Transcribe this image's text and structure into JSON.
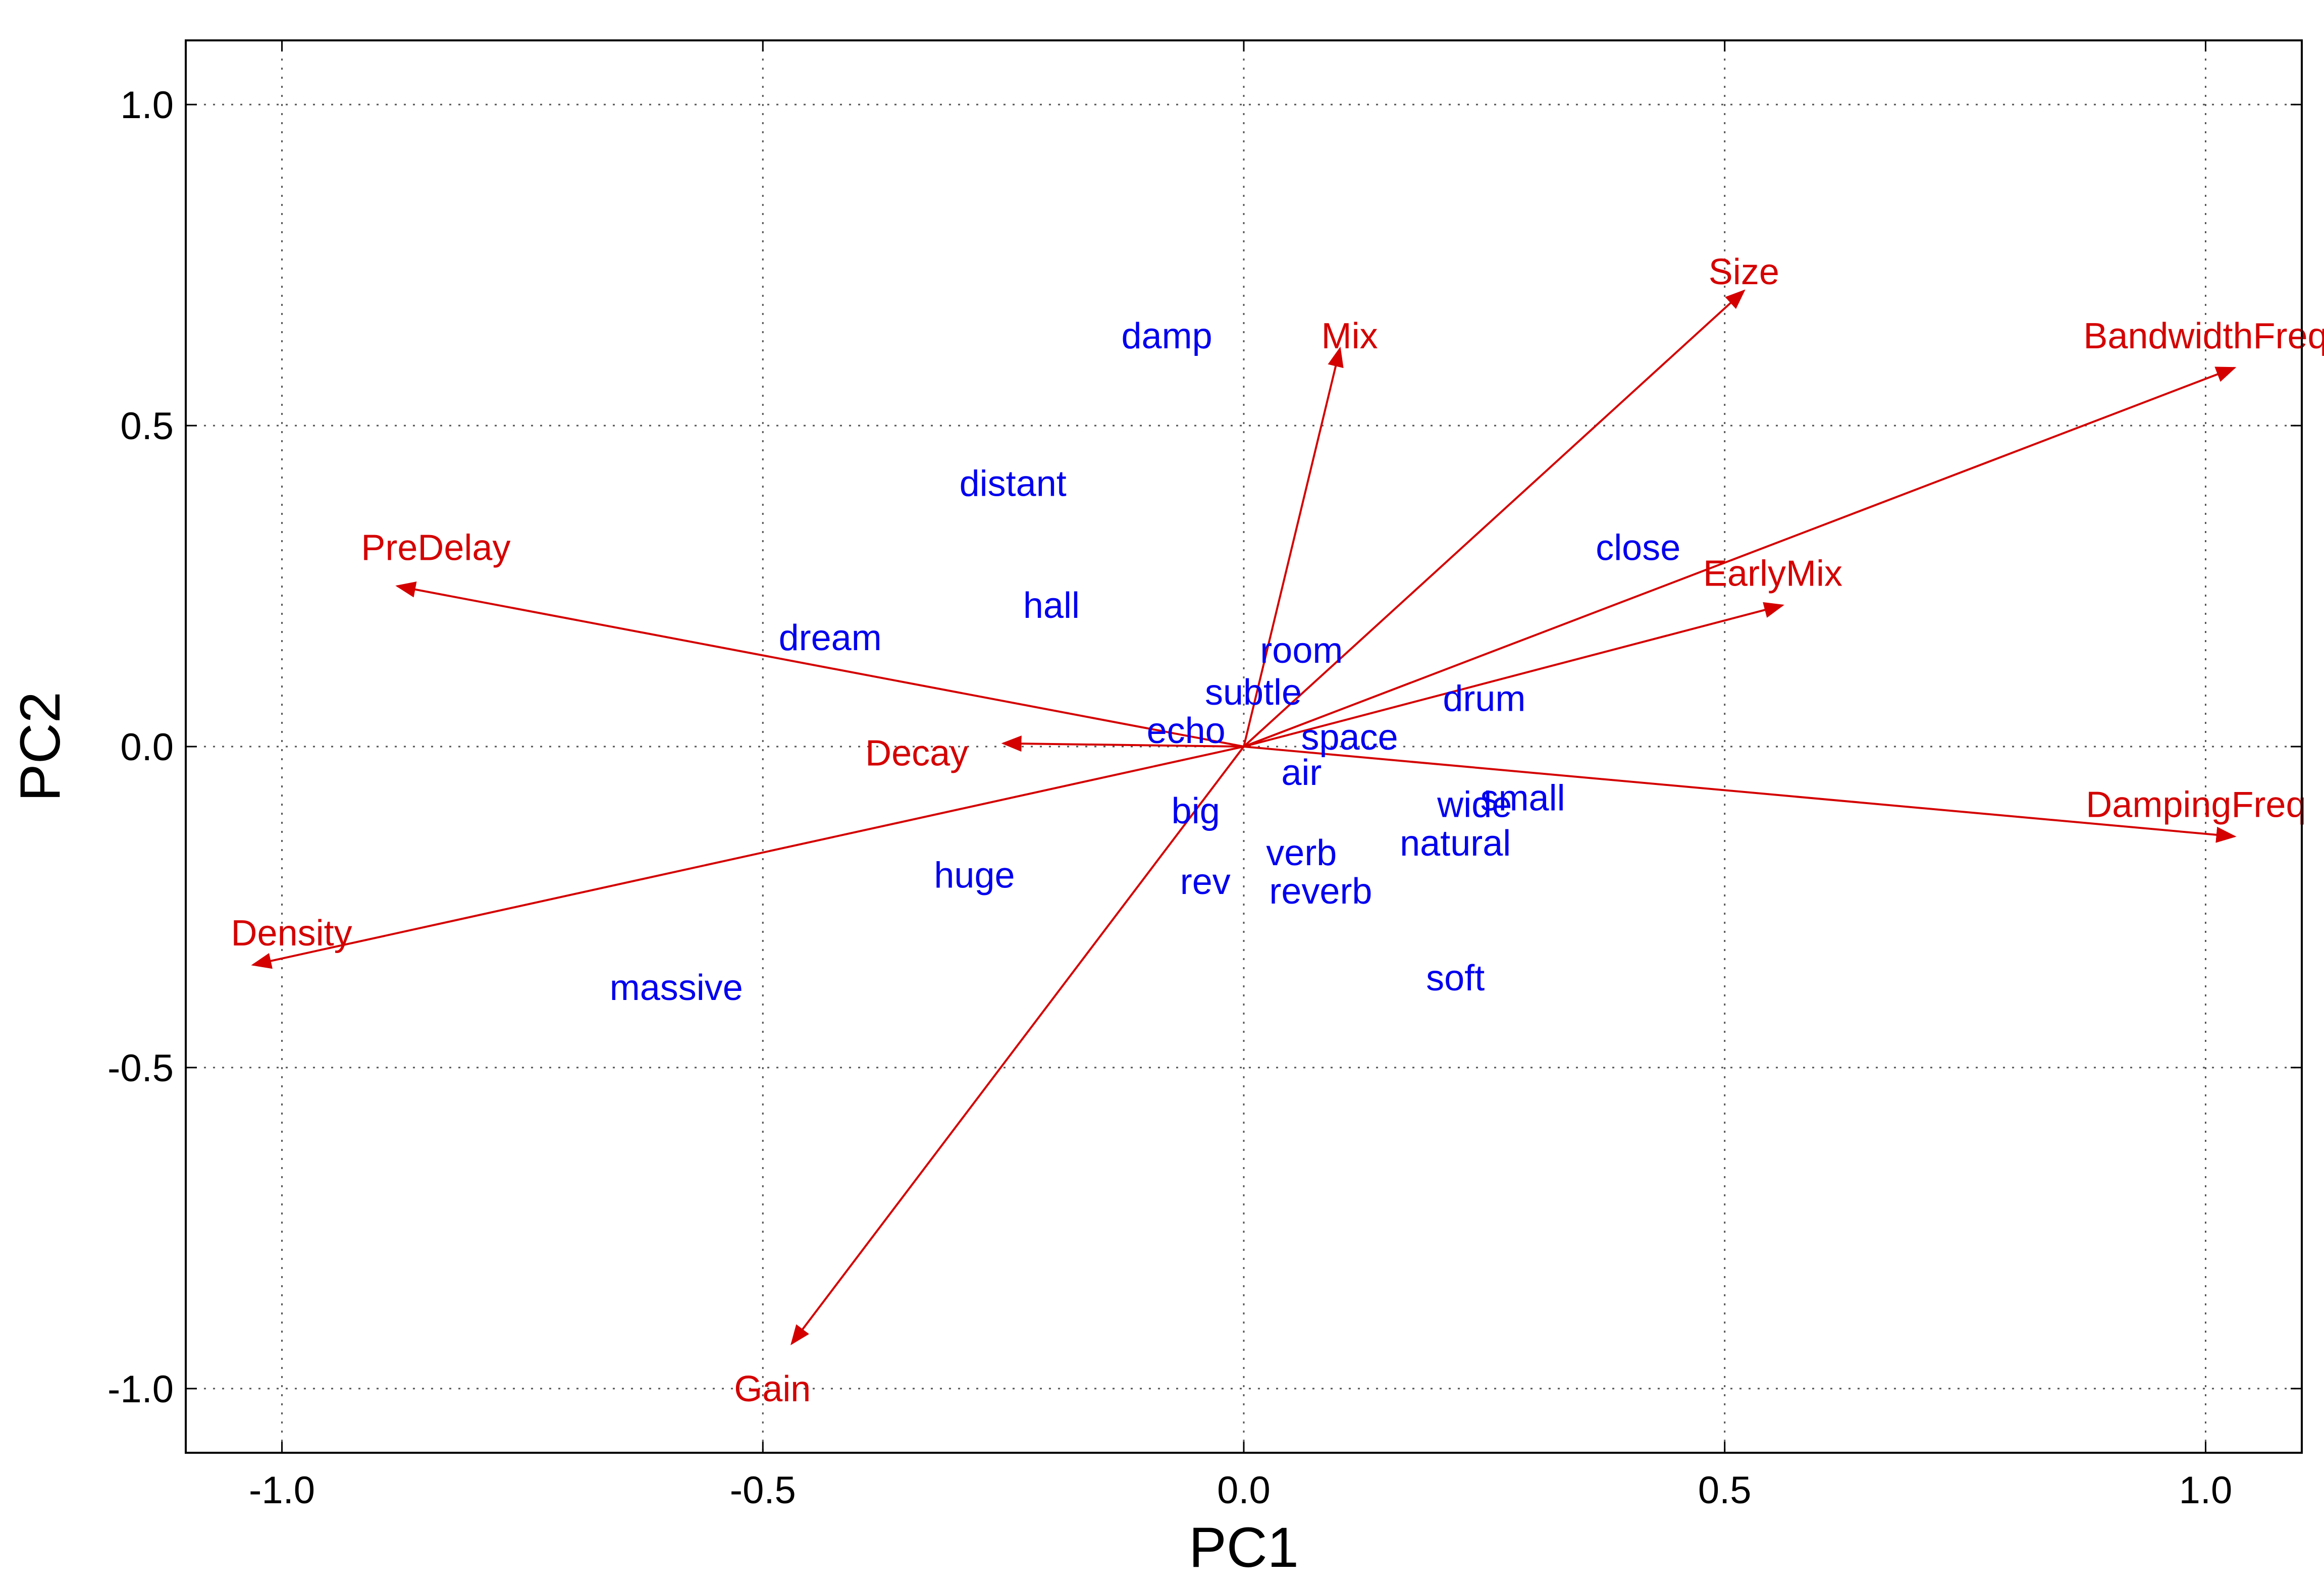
{
  "chart_data": {
    "type": "biplot",
    "xlabel": "PC1",
    "ylabel": "PC2",
    "xlim": [
      -1.1,
      1.1
    ],
    "ylim": [
      -1.1,
      1.1
    ],
    "xticks": [
      "-1.0",
      "-0.5",
      "0.0",
      "0.5",
      "1.0"
    ],
    "yticks": [
      "1.0",
      "0.5",
      "0.0",
      "-0.5",
      "-1.0"
    ],
    "xtick_values": [
      -1.0,
      -0.5,
      0.0,
      0.5,
      1.0
    ],
    "ytick_values": [
      1.0,
      0.5,
      0.0,
      -0.5,
      -1.0
    ],
    "grid": true,
    "colors": {
      "loadings": "#d40000",
      "words": "#0000ee"
    },
    "loadings": [
      {
        "label": "Mix",
        "x": 0.1,
        "y": 0.62,
        "label_x": 0.11,
        "label_y": 0.64
      },
      {
        "label": "Size",
        "x": 0.52,
        "y": 0.71,
        "label_x": 0.52,
        "label_y": 0.74
      },
      {
        "label": "BandwidthFreq",
        "x": 1.03,
        "y": 0.59,
        "label_x": 1.0,
        "label_y": 0.64
      },
      {
        "label": "EarlyMix",
        "x": 0.56,
        "y": 0.22,
        "label_x": 0.55,
        "label_y": 0.27
      },
      {
        "label": "PreDelay",
        "x": -0.88,
        "y": 0.25,
        "label_x": -0.84,
        "label_y": 0.31
      },
      {
        "label": "Decay",
        "x": -0.25,
        "y": 0.005,
        "label_x": -0.34,
        "label_y": -0.01
      },
      {
        "label": "DampingFreq",
        "x": 1.03,
        "y": -0.14,
        "label_x": 0.99,
        "label_y": -0.09
      },
      {
        "label": "Density",
        "x": -1.03,
        "y": -0.34,
        "label_x": -0.99,
        "label_y": -0.29
      },
      {
        "label": "Gain",
        "x": -0.47,
        "y": -0.93,
        "label_x": -0.49,
        "label_y": -1.0
      }
    ],
    "words": [
      {
        "label": "damp",
        "x": -0.08,
        "y": 0.64
      },
      {
        "label": "distant",
        "x": -0.24,
        "y": 0.41
      },
      {
        "label": "close",
        "x": 0.41,
        "y": 0.31
      },
      {
        "label": "hall",
        "x": -0.2,
        "y": 0.22
      },
      {
        "label": "dream",
        "x": -0.43,
        "y": 0.17
      },
      {
        "label": "room",
        "x": 0.06,
        "y": 0.15
      },
      {
        "label": "subtle",
        "x": 0.01,
        "y": 0.085
      },
      {
        "label": "drum",
        "x": 0.25,
        "y": 0.075
      },
      {
        "label": "echo",
        "x": -0.06,
        "y": 0.025
      },
      {
        "label": "space",
        "x": 0.11,
        "y": 0.015
      },
      {
        "label": "air",
        "x": 0.06,
        "y": -0.04
      },
      {
        "label": "small",
        "x": 0.29,
        "y": -0.08
      },
      {
        "label": "wide",
        "x": 0.24,
        "y": -0.09
      },
      {
        "label": "big",
        "x": -0.05,
        "y": -0.1
      },
      {
        "label": "natural",
        "x": 0.22,
        "y": -0.15
      },
      {
        "label": "verb",
        "x": 0.06,
        "y": -0.165
      },
      {
        "label": "huge",
        "x": -0.28,
        "y": -0.2
      },
      {
        "label": "rev",
        "x": -0.04,
        "y": -0.21
      },
      {
        "label": "reverb",
        "x": 0.08,
        "y": -0.225
      },
      {
        "label": "soft",
        "x": 0.22,
        "y": -0.36
      },
      {
        "label": "massive",
        "x": -0.59,
        "y": -0.375
      }
    ]
  }
}
